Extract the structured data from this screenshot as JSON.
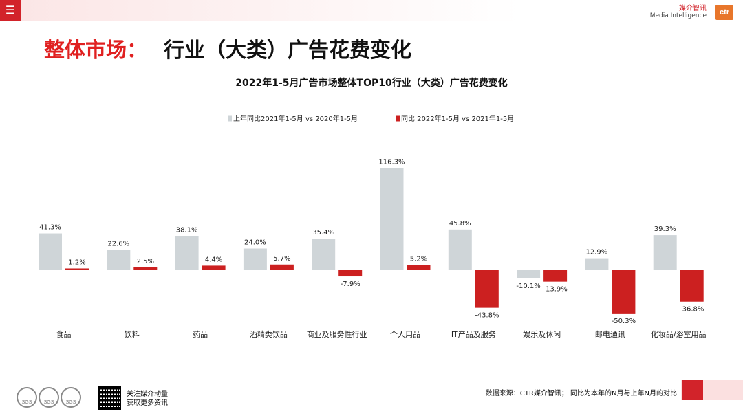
{
  "header": {
    "menu_icon": "hamburger-menu-icon",
    "logo": {
      "cn": "媒介智讯",
      "en": "Media Intelligence",
      "badge": "ctr",
      "brand_color": "#d2232a",
      "badge_color": "#e8762b"
    }
  },
  "page_title": {
    "accent": "整体市场：",
    "rest": "行业（大类）广告花费变化"
  },
  "chart_data": {
    "type": "bar",
    "title": "2022年1-5月广告市场整体TOP10行业（大类）广告花费变化",
    "categories": [
      "食品",
      "饮料",
      "药品",
      "酒精类饮品",
      "商业及服务性行业",
      "个人用品",
      "IT产品及服务",
      "娱乐及休闲",
      "邮电通讯",
      "化妆品/浴室用品"
    ],
    "series": [
      {
        "name": "上年同比2021年1-5月  vs  2020年1-5月",
        "color": "#cfd5d8",
        "values": [
          41.3,
          22.6,
          38.1,
          24.0,
          35.4,
          116.3,
          45.8,
          -10.1,
          12.9,
          39.3
        ],
        "labels": [
          "41.3%",
          "22.6%",
          "38.1%",
          "24.0%",
          "35.4%",
          "116.3%",
          "45.8%",
          "-10.1%",
          "12.9%",
          "39.3%"
        ]
      },
      {
        "name": "同比 2022年1-5月  vs  2021年1-5月",
        "color": "#cc2020",
        "values": [
          1.2,
          2.5,
          4.4,
          5.7,
          -7.9,
          5.2,
          -43.8,
          -13.9,
          -50.3,
          -36.8
        ],
        "labels": [
          "1.2%",
          "2.5%",
          "4.4%",
          "5.7%",
          "-7.9%",
          "5.2%",
          "-43.8%",
          "-13.9%",
          "-50.3%",
          "-36.8%"
        ]
      }
    ],
    "ylabel": "",
    "xlabel": "",
    "ylim": [
      -60,
      120
    ],
    "grid": false,
    "legend": "top-center"
  },
  "footer": {
    "seals": [
      "SGS",
      "SGS",
      "SGS"
    ],
    "qr_icon": "qr-code-icon",
    "follow_line1": "关注媒介动量",
    "follow_line2": "获取更多资讯",
    "source": "数据来源：CTR媒介智讯；  同比为本年的N月与上年N月的对比"
  }
}
